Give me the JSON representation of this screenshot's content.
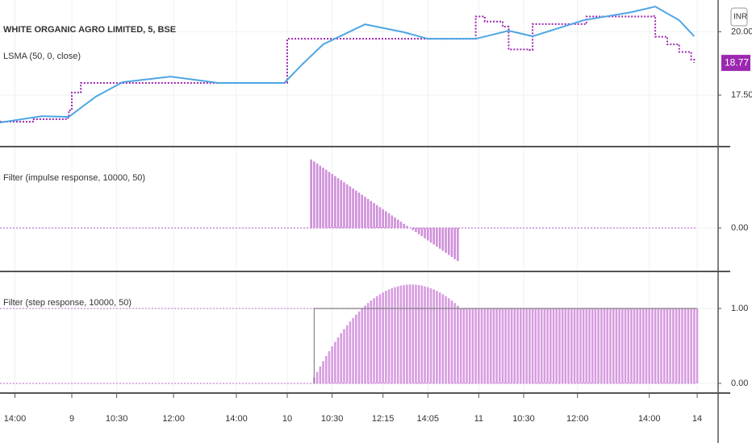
{
  "chart_data": [
    {
      "type": "line",
      "xlim": [
        0,
        240
      ],
      "ylim": [
        15.47,
        21.25
      ],
      "unit": "INR",
      "yticks": [
        {
          "value": 17.5,
          "label": "17.50"
        },
        {
          "value": 20,
          "label": "20.00"
        }
      ],
      "series": [
        {
          "name": "WHITE ORGANIC AGRO LIMITED, 5, BSE",
          "color": "#9c27b0",
          "step": true,
          "dashed": true,
          "price_label": true,
          "x": [
            0,
            11,
            22,
            23,
            24,
            27,
            54,
            81,
            95,
            96,
            122,
            158,
            159,
            162,
            168,
            170,
            177,
            178,
            196,
            218,
            219,
            223,
            227,
            231,
            232
          ],
          "values": [
            16.45,
            16.55,
            16.6,
            16.9,
            17.6,
            17.98,
            17.98,
            17.98,
            17.98,
            19.72,
            19.72,
            19.72,
            20.6,
            20.4,
            20.2,
            19.3,
            19.28,
            20.3,
            20.6,
            20.62,
            19.8,
            19.5,
            19.2,
            18.9,
            18.77
          ]
        },
        {
          "name": "LSMA (50, 0, close)",
          "color": "#4ea6e4",
          "step": false,
          "dashed": false,
          "x": [
            0,
            14,
            23,
            32,
            41,
            57,
            73,
            81,
            95,
            101,
            108,
            122,
            135,
            143,
            159,
            170,
            178,
            195,
            211,
            219,
            227,
            232
          ],
          "values": [
            16.42,
            16.67,
            16.64,
            17.44,
            18.01,
            18.23,
            17.98,
            17.98,
            17.98,
            18.71,
            19.5,
            20.29,
            19.98,
            19.72,
            19.72,
            20.04,
            19.82,
            20.45,
            20.77,
            20.99,
            20.45,
            19.82
          ]
        }
      ]
    },
    {
      "type": "bar",
      "xlim": [
        0,
        240
      ],
      "ylim": [
        -0.0493,
        0.0913
      ],
      "yticks": [
        {
          "value": 0,
          "label": "0.00"
        }
      ],
      "series": [
        {
          "name": "Filter (impulse response, 10000, 50)",
          "color": "#cf8fd9",
          "x": [
            104,
            105,
            106,
            107,
            108,
            109,
            110,
            111,
            112,
            113,
            114,
            115,
            116,
            117,
            118,
            119,
            120,
            121,
            122,
            123,
            124,
            125,
            126,
            127,
            128,
            129,
            130,
            131,
            132,
            133,
            134,
            135,
            136,
            137,
            138,
            139,
            140,
            141,
            142,
            143,
            144,
            145,
            146,
            147,
            148,
            149,
            150,
            151,
            152,
            153
          ],
          "values": [
            0.0776,
            0.0753,
            0.0729,
            0.0706,
            0.0682,
            0.0659,
            0.0635,
            0.0612,
            0.0588,
            0.0565,
            0.0541,
            0.0518,
            0.0494,
            0.0471,
            0.0447,
            0.0424,
            0.04,
            0.0376,
            0.0353,
            0.0329,
            0.0306,
            0.0282,
            0.0259,
            0.0235,
            0.0212,
            0.0188,
            0.0165,
            0.0141,
            0.0118,
            0.0094,
            0.0071,
            0.0047,
            0.0024,
            0,
            -0.0024,
            -0.0047,
            -0.0071,
            -0.0094,
            -0.0118,
            -0.0141,
            -0.0165,
            -0.0188,
            -0.0212,
            -0.0235,
            -0.0259,
            -0.0282,
            -0.0306,
            -0.0329,
            -0.0353,
            -0.0376
          ]
        }
      ]
    },
    {
      "type": "bar",
      "xlim": [
        0,
        240
      ],
      "ylim": [
        -0.129,
        1.484
      ],
      "yticks": [
        {
          "value": 0,
          "label": "0.00"
        },
        {
          "value": 1,
          "label": "1.00"
        }
      ],
      "xticks": [
        {
          "value": 5,
          "label": "14:00"
        },
        {
          "value": 24,
          "label": "9"
        },
        {
          "value": 39,
          "label": "10:30"
        },
        {
          "value": 58,
          "label": "12:00"
        },
        {
          "value": 79,
          "label": "14:00"
        },
        {
          "value": 96,
          "label": "10"
        },
        {
          "value": 111,
          "label": "10:30"
        },
        {
          "value": 128,
          "label": "12:15"
        },
        {
          "value": 143,
          "label": "14:05"
        },
        {
          "value": 160,
          "label": "11"
        },
        {
          "value": 175,
          "label": "10:30"
        },
        {
          "value": 193,
          "label": "12:00"
        },
        {
          "value": 217,
          "label": "14:00"
        },
        {
          "value": 233,
          "label": "14"
        }
      ],
      "series": [
        {
          "name": "Filter (step response, 10000, 50)",
          "color": "#d79ce0",
          "x": [
            105,
            106,
            107,
            108,
            109,
            110,
            111,
            112,
            113,
            114,
            115,
            116,
            117,
            118,
            119,
            120,
            121,
            122,
            123,
            124,
            125,
            126,
            127,
            128,
            129,
            130,
            131,
            132,
            133,
            134,
            135,
            136,
            137,
            138,
            139,
            140,
            141,
            142,
            143,
            144,
            145,
            146,
            147,
            148,
            149,
            150,
            151,
            152,
            153,
            154,
            155,
            156,
            157,
            158,
            159,
            160,
            161,
            162,
            163,
            164,
            165,
            166,
            167,
            168,
            169,
            170,
            171,
            172,
            173,
            174,
            175,
            176,
            177,
            178,
            179,
            180,
            181,
            182,
            183,
            184,
            185,
            186,
            187,
            188,
            189,
            190,
            191,
            192,
            193,
            194,
            195,
            196,
            197,
            198,
            199,
            200,
            201,
            202,
            203,
            204,
            205,
            206,
            207,
            208,
            209,
            210,
            211,
            212,
            213,
            214,
            215,
            216,
            217,
            218,
            219,
            220,
            221,
            222,
            223,
            224,
            225,
            226,
            227,
            228,
            229,
            230,
            231,
            232,
            233
          ],
          "values": [
            0.0776,
            0.1529,
            0.2259,
            0.2965,
            0.3647,
            0.4306,
            0.4941,
            0.5553,
            0.6141,
            0.6706,
            0.7247,
            0.7765,
            0.8259,
            0.8729,
            0.9176,
            0.96,
            1.0,
            1.0376,
            1.0729,
            1.1059,
            1.1365,
            1.1647,
            1.1906,
            1.2141,
            1.2353,
            1.2541,
            1.2706,
            1.2847,
            1.2965,
            1.3059,
            1.3129,
            1.3176,
            1.32,
            1.32,
            1.3176,
            1.3129,
            1.3059,
            1.2965,
            1.2847,
            1.2706,
            1.2541,
            1.2353,
            1.2141,
            1.1906,
            1.1647,
            1.1365,
            1.1059,
            1.0729,
            1.0376,
            1.0,
            1,
            1,
            1,
            1,
            1,
            1,
            1,
            1,
            1,
            1,
            1,
            1,
            1,
            1,
            1,
            1,
            1,
            1,
            1,
            1,
            1,
            1,
            1,
            1,
            1,
            1,
            1,
            1,
            1,
            1,
            1,
            1,
            1,
            1,
            1,
            1,
            1,
            1,
            1,
            1,
            1,
            1,
            1,
            1,
            1,
            1,
            1,
            1,
            1,
            1,
            1,
            1,
            1,
            1,
            1,
            1,
            1,
            1,
            1,
            1,
            1,
            1,
            1,
            1,
            1,
            1,
            1,
            1,
            1,
            1,
            1,
            1,
            1,
            1,
            1,
            1,
            1,
            1,
            1
          ]
        },
        {
          "type": "line",
          "color": "#888888",
          "x": [
            105,
            105,
            233
          ],
          "values": [
            0,
            1,
            1
          ]
        }
      ]
    }
  ]
}
